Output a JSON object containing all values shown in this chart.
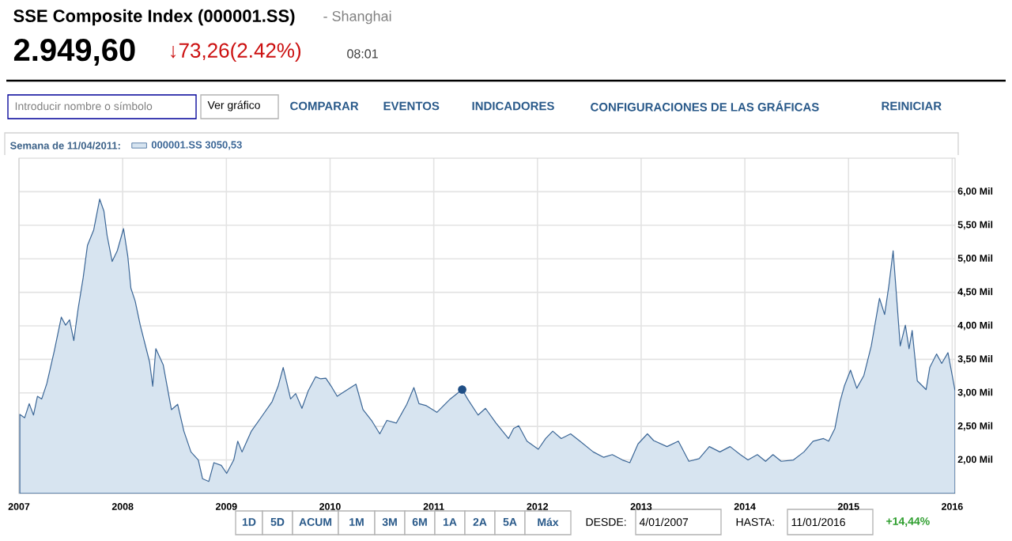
{
  "chart_data": {
    "type": "area",
    "title": "SSE Composite Index (000001.SS)",
    "subtitle": "- Shanghai",
    "legend_title": "Semana de 11/04/2011:",
    "legend": "top left",
    "grid": true,
    "xlim": [
      "2007-01-01",
      "2016-01-11"
    ],
    "xticks": [
      "2007",
      "2008",
      "2009",
      "2010",
      "2011",
      "2012",
      "2013",
      "2014",
      "2015",
      "2016"
    ],
    "ylim": [
      1.5,
      6.5
    ],
    "yticks": [
      {
        "value": 2.0,
        "label": "2,00 Mil"
      },
      {
        "value": 2.5,
        "label": "2,50 Mil"
      },
      {
        "value": 3.0,
        "label": "3,00 Mil"
      },
      {
        "value": 3.5,
        "label": "3,50 Mil"
      },
      {
        "value": 4.0,
        "label": "4,00 Mil"
      },
      {
        "value": 4.5,
        "label": "4,50 Mil"
      },
      {
        "value": 5.0,
        "label": "5,00 Mil"
      },
      {
        "value": 5.5,
        "label": "5,50 Mil"
      },
      {
        "value": 6.0,
        "label": "6,00 Mil"
      }
    ],
    "annotations": [
      "2.949,60",
      "↓73,26(2.42%)",
      "08:01",
      "Introducir nombre o símbolo",
      "Ver gráfico",
      "COMPARAR",
      "EVENTOS",
      "INDICADORES",
      "CONFIGURACIONES DE LAS GRÁFICAS",
      "REINICIAR",
      "1D",
      "5D",
      "ACUM",
      "1M",
      "3M",
      "6M",
      "1A",
      "2A",
      "5A",
      "Máx",
      "DESDE:",
      "4/01/2007",
      "HASTA:",
      "11/01/2016",
      "+14,44%"
    ],
    "series": [
      {
        "name": "000001.SS 3050,53",
        "color": "#d7e4f0",
        "x": [
          "2007-01-04",
          "2007-01-21",
          "2007-02-06",
          "2007-02-21",
          "2007-03-07",
          "2007-03-22",
          "2007-04-09",
          "2007-05-05",
          "2007-05-30",
          "2007-06-14",
          "2007-06-28",
          "2007-07-13",
          "2007-07-28",
          "2007-08-15",
          "2007-08-30",
          "2007-09-21",
          "2007-10-12",
          "2007-10-27",
          "2007-11-07",
          "2007-11-25",
          "2007-12-13",
          "2008-01-04",
          "2008-01-19",
          "2008-01-30",
          "2008-02-14",
          "2008-03-03",
          "2008-04-05",
          "2008-04-16",
          "2008-04-27",
          "2008-05-23",
          "2008-06-21",
          "2008-07-13",
          "2008-08-04",
          "2008-08-29",
          "2008-09-24",
          "2008-10-09",
          "2008-10-31",
          "2008-11-18",
          "2008-12-14",
          "2009-01-02",
          "2009-01-27",
          "2009-02-10",
          "2009-02-25",
          "2009-03-30",
          "2009-05-09",
          "2009-06-11",
          "2009-07-02",
          "2009-07-20",
          "2009-08-15",
          "2009-09-02",
          "2009-09-24",
          "2009-10-16",
          "2009-11-11",
          "2009-11-29",
          "2009-12-17",
          "2010-01-05",
          "2010-01-26",
          "2010-02-24",
          "2010-04-02",
          "2010-04-27",
          "2010-05-27",
          "2010-06-25",
          "2010-07-20",
          "2010-08-22",
          "2010-09-28",
          "2010-10-23",
          "2010-11-10",
          "2010-12-06",
          "2011-01-12",
          "2011-02-28",
          "2011-04-11",
          "2011-04-30",
          "2011-06-06",
          "2011-07-02",
          "2011-08-08",
          "2011-09-21",
          "2011-10-09",
          "2011-10-27",
          "2011-11-25",
          "2012-01-04",
          "2012-01-30",
          "2012-02-24",
          "2012-03-25",
          "2012-04-27",
          "2012-05-30",
          "2012-07-16",
          "2012-08-22",
          "2012-09-21",
          "2012-10-27",
          "2012-11-22",
          "2012-12-21",
          "2013-01-23",
          "2013-02-14",
          "2013-04-02",
          "2013-05-12",
          "2013-06-18",
          "2013-07-24",
          "2013-08-29",
          "2013-10-05",
          "2013-11-10",
          "2013-12-16",
          "2014-01-12",
          "2014-02-14",
          "2014-03-15",
          "2014-04-10",
          "2014-05-09",
          "2014-06-21",
          "2014-07-28",
          "2014-08-29",
          "2014-10-05",
          "2014-10-23",
          "2014-11-14",
          "2014-12-02",
          "2014-12-17",
          "2015-01-08",
          "2015-01-30",
          "2015-02-24",
          "2015-03-22",
          "2015-04-20",
          "2015-05-08",
          "2015-05-23",
          "2015-06-07",
          "2015-07-02",
          "2015-07-20",
          "2015-08-02",
          "2015-08-13",
          "2015-08-31",
          "2015-10-01",
          "2015-10-14",
          "2015-11-07",
          "2015-11-25",
          "2015-12-17",
          "2016-01-11"
        ],
        "values": [
          2.68,
          2.63,
          2.84,
          2.67,
          2.95,
          2.91,
          3.14,
          3.62,
          4.13,
          4.01,
          4.09,
          3.78,
          4.25,
          4.72,
          5.2,
          5.43,
          5.89,
          5.71,
          5.35,
          4.96,
          5.12,
          5.45,
          5.04,
          4.56,
          4.37,
          4.01,
          3.46,
          3.1,
          3.66,
          3.42,
          2.75,
          2.83,
          2.43,
          2.12,
          2.0,
          1.72,
          1.68,
          1.96,
          1.92,
          1.8,
          2.0,
          2.28,
          2.12,
          2.43,
          2.67,
          2.87,
          3.1,
          3.38,
          2.91,
          2.99,
          2.77,
          3.03,
          3.24,
          3.21,
          3.22,
          3.1,
          2.95,
          3.03,
          3.13,
          2.75,
          2.59,
          2.39,
          2.59,
          2.55,
          2.83,
          3.08,
          2.84,
          2.81,
          2.71,
          2.91,
          3.05,
          2.91,
          2.67,
          2.77,
          2.55,
          2.32,
          2.47,
          2.51,
          2.28,
          2.16,
          2.32,
          2.43,
          2.32,
          2.39,
          2.28,
          2.12,
          2.04,
          2.08,
          2.0,
          1.96,
          2.24,
          2.39,
          2.29,
          2.2,
          2.28,
          1.98,
          2.02,
          2.2,
          2.12,
          2.2,
          2.08,
          2.0,
          2.08,
          1.98,
          2.08,
          1.98,
          2.0,
          2.12,
          2.28,
          2.32,
          2.28,
          2.47,
          2.87,
          3.1,
          3.34,
          3.07,
          3.26,
          3.7,
          4.41,
          4.17,
          4.6,
          5.12,
          3.7,
          4.01,
          3.66,
          3.93,
          3.18,
          3.05,
          3.38,
          3.58,
          3.44,
          3.6,
          3.03
        ]
      },
      {
        "type": "scatter",
        "marker": "circle",
        "color": "#1f4e85",
        "x": [
          "2011-04-11"
        ],
        "values": [
          3.05
        ]
      }
    ]
  }
}
